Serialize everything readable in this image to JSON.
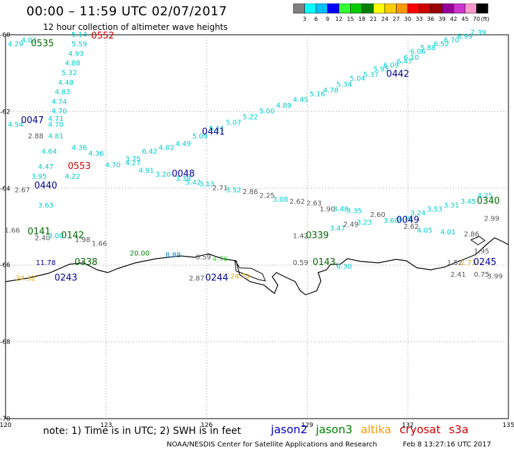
{
  "header": {
    "title": "00:00 – 11:59 UTC 02/07/2017",
    "subtitle": "12 hour collection of altimeter wave heights"
  },
  "colorbar": {
    "labels": [
      "3",
      "6",
      "9",
      "12",
      "15",
      "18",
      "21",
      "24",
      "27",
      "30",
      "33",
      "36",
      "39",
      "42",
      "45",
      "70"
    ],
    "unit": "(ft)",
    "colors": [
      "#808080",
      "#00ffff",
      "#00bfff",
      "#0000ff",
      "#33ff33",
      "#00cc00",
      "#008000",
      "#ffff00",
      "#ffcc00",
      "#ff9900",
      "#ff0000",
      "#cc0000",
      "#990000",
      "#990099",
      "#cc33cc",
      "#ff99cc",
      "#000000"
    ]
  },
  "axes": {
    "lat_labels": [
      "-60",
      "-62",
      "-64",
      "-66",
      "-68",
      "-70"
    ],
    "lon_labels": [
      "120",
      "123",
      "126",
      "129",
      "132",
      "135"
    ],
    "lat_range": [
      -70,
      -60
    ],
    "lon_range": [
      120,
      135
    ]
  },
  "passes": [
    {
      "label": "0535",
      "color": "#006600",
      "lon": 121.1,
      "lat": -60.3
    },
    {
      "label": "0552",
      "color": "#cc0000",
      "lon": 122.9,
      "lat": -60.1
    },
    {
      "label": "0047",
      "color": "#000099",
      "lon": 120.8,
      "lat": -62.3
    },
    {
      "label": "0553",
      "color": "#cc0000",
      "lon": 122.2,
      "lat": -63.5
    },
    {
      "label": "0441",
      "color": "#000099",
      "lon": 126.2,
      "lat": -62.6
    },
    {
      "label": "0442",
      "color": "#000099",
      "lon": 131.7,
      "lat": -61.1
    },
    {
      "label": "0048",
      "color": "#000099",
      "lon": 125.3,
      "lat": -63.7
    },
    {
      "label": "0440",
      "color": "#000099",
      "lon": 121.2,
      "lat": -64.0
    },
    {
      "label": "0141",
      "color": "#006600",
      "lon": 121.0,
      "lat": -65.2
    },
    {
      "label": "0142",
      "color": "#006600",
      "lon": 122.0,
      "lat": -65.3
    },
    {
      "label": "0338",
      "color": "#006600",
      "lon": 122.4,
      "lat": -66.0
    },
    {
      "label": "0243",
      "color": "#000099",
      "lon": 121.8,
      "lat": -66.4
    },
    {
      "label": "0244",
      "color": "#000099",
      "lon": 126.3,
      "lat": -66.4
    },
    {
      "label": "0339",
      "color": "#006600",
      "lon": 129.3,
      "lat": -65.3
    },
    {
      "label": "0143",
      "color": "#006600",
      "lon": 129.5,
      "lat": -66.0
    },
    {
      "label": "0049",
      "color": "#000099",
      "lon": 132.0,
      "lat": -64.9
    },
    {
      "label": "0340",
      "color": "#006600",
      "lon": 134.4,
      "lat": -64.4
    },
    {
      "label": "0245",
      "color": "#000099",
      "lon": 134.3,
      "lat": -66.0
    }
  ],
  "values": [
    {
      "t": "5.14",
      "c": "#00cccc",
      "lon": 122.2,
      "lat": -60.05
    },
    {
      "t": "4.29",
      "c": "#00cccc",
      "lon": 120.3,
      "lat": -60.3
    },
    {
      "t": "4.03",
      "c": "#00cccc",
      "lon": 120.7,
      "lat": -60.2
    },
    {
      "t": "5.59",
      "c": "#00cccc",
      "lon": 122.2,
      "lat": -60.3
    },
    {
      "t": "4.93",
      "c": "#00cccc",
      "lon": 122.1,
      "lat": -60.55
    },
    {
      "t": "4.88",
      "c": "#00cccc",
      "lon": 122.0,
      "lat": -60.8
    },
    {
      "t": "5.32",
      "c": "#00cccc",
      "lon": 121.9,
      "lat": -61.05
    },
    {
      "t": "4.48",
      "c": "#00cccc",
      "lon": 121.8,
      "lat": -61.3
    },
    {
      "t": "4.83",
      "c": "#00cccc",
      "lon": 121.7,
      "lat": -61.55
    },
    {
      "t": "4.74",
      "c": "#00cccc",
      "lon": 121.6,
      "lat": -61.8
    },
    {
      "t": "4.70",
      "c": "#00cccc",
      "lon": 121.6,
      "lat": -62.05
    },
    {
      "t": "4.71",
      "c": "#00cccc",
      "lon": 121.5,
      "lat": -62.25
    },
    {
      "t": "4.70",
      "c": "#00cccc",
      "lon": 121.5,
      "lat": -62.4
    },
    {
      "t": "4.54",
      "c": "#00cccc",
      "lon": 120.3,
      "lat": -62.4
    },
    {
      "t": "2.88",
      "c": "#555555",
      "lon": 120.9,
      "lat": -62.7
    },
    {
      "t": "4.81",
      "c": "#00cccc",
      "lon": 121.5,
      "lat": -62.7
    },
    {
      "t": "4.64",
      "c": "#00cccc",
      "lon": 121.3,
      "lat": -63.1
    },
    {
      "t": "4.47",
      "c": "#00cccc",
      "lon": 121.2,
      "lat": -63.5
    },
    {
      "t": "3.95",
      "c": "#00cccc",
      "lon": 121.0,
      "lat": -63.75
    },
    {
      "t": "4.36",
      "c": "#00cccc",
      "lon": 122.2,
      "lat": -63.0
    },
    {
      "t": "4.22",
      "c": "#00cccc",
      "lon": 122.0,
      "lat": -63.75
    },
    {
      "t": "2.67",
      "c": "#555555",
      "lon": 120.5,
      "lat": -64.1
    },
    {
      "t": "3.63",
      "c": "#00cccc",
      "lon": 121.2,
      "lat": -64.5
    },
    {
      "t": "4.36",
      "c": "#00cccc",
      "lon": 122.7,
      "lat": -63.15
    },
    {
      "t": "4.70",
      "c": "#00cccc",
      "lon": 123.2,
      "lat": -63.45
    },
    {
      "t": "4.27",
      "c": "#00cccc",
      "lon": 123.8,
      "lat": -63.4
    },
    {
      "t": "4.91",
      "c": "#00cccc",
      "lon": 124.2,
      "lat": -63.6
    },
    {
      "t": "3.20",
      "c": "#00cccc",
      "lon": 124.7,
      "lat": -63.7
    },
    {
      "t": "3.75",
      "c": "#00cccc",
      "lon": 123.8,
      "lat": -63.3
    },
    {
      "t": "6.42",
      "c": "#00cccc",
      "lon": 124.3,
      "lat": -63.1
    },
    {
      "t": "4.02",
      "c": "#00cccc",
      "lon": 124.8,
      "lat": -63.0
    },
    {
      "t": "4.49",
      "c": "#00cccc",
      "lon": 125.3,
      "lat": -62.9
    },
    {
      "t": "5.09",
      "c": "#00cccc",
      "lon": 125.8,
      "lat": -62.7
    },
    {
      "t": "5.11",
      "c": "#00cccc",
      "lon": 126.3,
      "lat": -62.5
    },
    {
      "t": "5.07",
      "c": "#00cccc",
      "lon": 126.8,
      "lat": -62.35
    },
    {
      "t": "5.22",
      "c": "#00cccc",
      "lon": 127.3,
      "lat": -62.2
    },
    {
      "t": "5.00",
      "c": "#00cccc",
      "lon": 127.8,
      "lat": -62.05
    },
    {
      "t": "4.89",
      "c": "#00cccc",
      "lon": 128.3,
      "lat": -61.9
    },
    {
      "t": "4.45",
      "c": "#00cccc",
      "lon": 128.8,
      "lat": -61.75
    },
    {
      "t": "5.16",
      "c": "#00cccc",
      "lon": 129.3,
      "lat": -61.6
    },
    {
      "t": "4.78",
      "c": "#00cccc",
      "lon": 129.7,
      "lat": -61.5
    },
    {
      "t": "5.34",
      "c": "#00cccc",
      "lon": 130.1,
      "lat": -61.35
    },
    {
      "t": "5.04",
      "c": "#00cccc",
      "lon": 130.5,
      "lat": -61.2
    },
    {
      "t": "5.37",
      "c": "#00cccc",
      "lon": 130.9,
      "lat": -61.1
    },
    {
      "t": "5.95",
      "c": "#00cccc",
      "lon": 131.2,
      "lat": -60.95
    },
    {
      "t": "6.09",
      "c": "#00cccc",
      "lon": 131.5,
      "lat": -60.85
    },
    {
      "t": "6.47",
      "c": "#00cccc",
      "lon": 131.9,
      "lat": -60.75
    },
    {
      "t": "6.10",
      "c": "#00cccc",
      "lon": 132.1,
      "lat": -60.65
    },
    {
      "t": "6.06",
      "c": "#00cccc",
      "lon": 132.3,
      "lat": -60.5
    },
    {
      "t": "5.88",
      "c": "#00cccc",
      "lon": 132.6,
      "lat": -60.4
    },
    {
      "t": "6.52",
      "c": "#00cccc",
      "lon": 133.0,
      "lat": -60.3
    },
    {
      "t": "6.70",
      "c": "#00cccc",
      "lon": 133.3,
      "lat": -60.2
    },
    {
      "t": "6.99",
      "c": "#00cccc",
      "lon": 133.7,
      "lat": -60.1
    },
    {
      "t": "7.39",
      "c": "#00cccc",
      "lon": 134.1,
      "lat": -60.0
    },
    {
      "t": "3.38",
      "c": "#00cccc",
      "lon": 125.3,
      "lat": -63.8
    },
    {
      "t": "5.42",
      "c": "#00cccc",
      "lon": 125.6,
      "lat": -63.9
    },
    {
      "t": "3.13",
      "c": "#00cccc",
      "lon": 126.0,
      "lat": -63.95
    },
    {
      "t": "2.71",
      "c": "#555555",
      "lon": 126.4,
      "lat": -64.05
    },
    {
      "t": "3.52",
      "c": "#00cccc",
      "lon": 126.8,
      "lat": -64.1
    },
    {
      "t": "2.86",
      "c": "#555555",
      "lon": 127.3,
      "lat": -64.15
    },
    {
      "t": "2.25",
      "c": "#555555",
      "lon": 127.8,
      "lat": -64.25
    },
    {
      "t": "3.08",
      "c": "#00cccc",
      "lon": 128.2,
      "lat": -64.35
    },
    {
      "t": "2.62",
      "c": "#555555",
      "lon": 128.7,
      "lat": -64.4
    },
    {
      "t": "2.63",
      "c": "#555555",
      "lon": 129.2,
      "lat": -64.45
    },
    {
      "t": "1.90",
      "c": "#555555",
      "lon": 129.6,
      "lat": -64.6
    },
    {
      "t": "3.48",
      "c": "#00cccc",
      "lon": 130.0,
      "lat": -64.6
    },
    {
      "t": "3.35",
      "c": "#00cccc",
      "lon": 130.4,
      "lat": -64.65
    },
    {
      "t": "2.60",
      "c": "#555555",
      "lon": 131.1,
      "lat": -64.75
    },
    {
      "t": "3.60",
      "c": "#00cccc",
      "lon": 131.5,
      "lat": -64.9
    },
    {
      "t": "3.79",
      "c": "#00cccc",
      "lon": 131.9,
      "lat": -64.85
    },
    {
      "t": "3.24",
      "c": "#00cccc",
      "lon": 132.3,
      "lat": -64.7
    },
    {
      "t": "3.53",
      "c": "#00cccc",
      "lon": 132.8,
      "lat": -64.6
    },
    {
      "t": "3.31",
      "c": "#00cccc",
      "lon": 133.3,
      "lat": -64.5
    },
    {
      "t": "3.45",
      "c": "#00cccc",
      "lon": 133.8,
      "lat": -64.4
    },
    {
      "t": "4.25",
      "c": "#00cccc",
      "lon": 134.3,
      "lat": -64.25
    },
    {
      "t": "2.99",
      "c": "#555555",
      "lon": 134.5,
      "lat": -64.85
    },
    {
      "t": "2.62",
      "c": "#555555",
      "lon": 132.1,
      "lat": -65.05
    },
    {
      "t": "4.05",
      "c": "#00cccc",
      "lon": 132.5,
      "lat": -65.15
    },
    {
      "t": "4.01",
      "c": "#00cccc",
      "lon": 133.2,
      "lat": -65.2
    },
    {
      "t": "2.86",
      "c": "#555555",
      "lon": 133.9,
      "lat": -65.25
    },
    {
      "t": "1.95",
      "c": "#555555",
      "lon": 134.2,
      "lat": -65.7
    },
    {
      "t": "1.42",
      "c": "#555555",
      "lon": 128.8,
      "lat": -65.3
    },
    {
      "t": "3.47",
      "c": "#00cccc",
      "lon": 129.9,
      "lat": -65.1
    },
    {
      "t": "2.49",
      "c": "#555555",
      "lon": 130.3,
      "lat": -65.0
    },
    {
      "t": "3.23",
      "c": "#00cccc",
      "lon": 130.7,
      "lat": -64.95
    },
    {
      "t": "1.66",
      "c": "#555555",
      "lon": 120.2,
      "lat": -65.15
    },
    {
      "t": "2.40",
      "c": "#555555",
      "lon": 121.1,
      "lat": -65.35
    },
    {
      "t": "3.00",
      "c": "#00cccc",
      "lon": 121.5,
      "lat": -65.3
    },
    {
      "t": "1.98",
      "c": "#555555",
      "lon": 122.3,
      "lat": -65.4
    },
    {
      "t": "1.66",
      "c": "#555555",
      "lon": 122.8,
      "lat": -65.5
    },
    {
      "t": "20.00",
      "c": "#008000",
      "lon": 124.0,
      "lat": -65.75
    },
    {
      "t": "8.88",
      "c": "#0088cc",
      "lon": 125.0,
      "lat": -65.8
    },
    {
      "t": "0.59",
      "c": "#555555",
      "lon": 125.9,
      "lat": -65.85
    },
    {
      "t": "4.76",
      "c": "#33cc33",
      "lon": 126.4,
      "lat": -65.9
    },
    {
      "t": "11.78",
      "c": "#000099",
      "lon": 121.2,
      "lat": -66.0
    },
    {
      "t": "24.32",
      "c": "#ddaa00",
      "lon": 120.6,
      "lat": -66.4
    },
    {
      "t": "2.87",
      "c": "#555555",
      "lon": 125.7,
      "lat": -66.4
    },
    {
      "t": "24.71",
      "c": "#ddaa00",
      "lon": 127.0,
      "lat": -66.35
    },
    {
      "t": "0.59",
      "c": "#555555",
      "lon": 128.8,
      "lat": -66.0
    },
    {
      "t": "6.30",
      "c": "#00cccc",
      "lon": 130.1,
      "lat": -66.1
    },
    {
      "t": "1.52",
      "c": "#555555",
      "lon": 133.4,
      "lat": -66.0
    },
    {
      "t": "2.71",
      "c": "#ddaa00",
      "lon": 133.8,
      "lat": -66.0
    },
    {
      "t": "2.41",
      "c": "#555555",
      "lon": 133.5,
      "lat": -66.3
    },
    {
      "t": "0.75",
      "c": "#555555",
      "lon": 134.2,
      "lat": -66.3
    },
    {
      "t": "3.99",
      "c": "#555555",
      "lon": 134.6,
      "lat": -66.35
    }
  ],
  "footer": {
    "note": "note: 1) Time is in UTC; 2) SWH is in feet",
    "legend": [
      {
        "name": "jason2",
        "color": "#0000cc"
      },
      {
        "name": "jason3",
        "color": "#008000"
      },
      {
        "name": "altika",
        "color": "#ff9900"
      },
      {
        "name": "cryosat",
        "color": "#cc0000"
      },
      {
        "name": "s3a",
        "color": "#cc0000"
      }
    ],
    "credit": "NOAA/NESDIS Center for Satellite Applications and Research",
    "timestamp": "Feb  8 13:27:16 UTC 2017"
  }
}
